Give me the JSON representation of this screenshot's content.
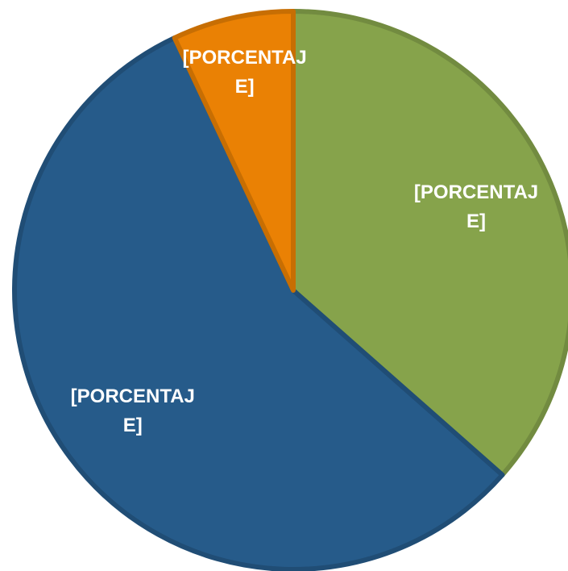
{
  "chart_data": {
    "type": "pie",
    "values": [
      36.5,
      56.5,
      7
    ],
    "value_labels": [
      "[PORCENTAJE]",
      "[PORCENTAJE]",
      "[PORCENTAJE]"
    ],
    "colors": [
      "#86a34b",
      "#265b8a",
      "#ea8104"
    ],
    "start_angle": 0,
    "direction": "clockwise"
  }
}
